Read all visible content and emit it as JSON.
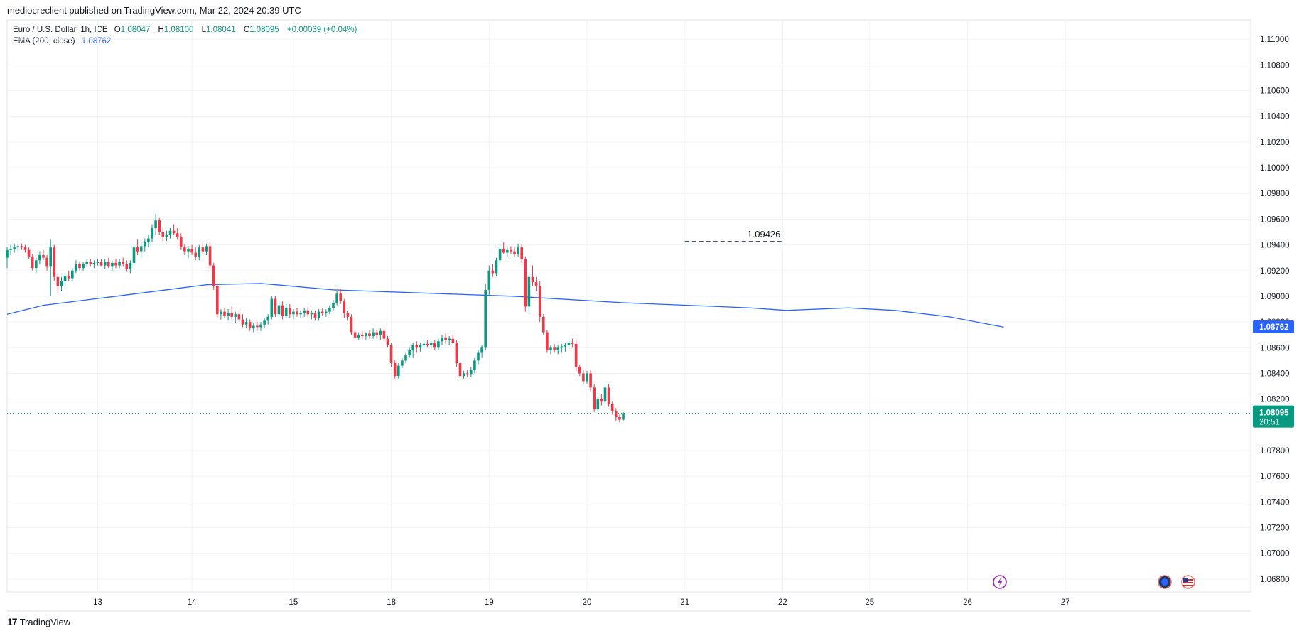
{
  "caption": "mediocreclient published on TradingView.com, Mar 22, 2024 20:39 UTC",
  "legend": {
    "symbol": "Euro / U.S. Dollar, 1h, ICE",
    "o_label": "O",
    "o_value": "1.08047",
    "h_label": "H",
    "h_value": "1.08100",
    "l_label": "L",
    "l_value": "1.08041",
    "c_label": "C",
    "c_value": "1.08095",
    "change": "+0.00039 (+0.04%)",
    "ema_label": "EMA (200, close)",
    "ema_value": "1.08762"
  },
  "branding": {
    "logo_text": "TradingView",
    "logo_icon": "tradingview-logo-icon"
  },
  "colors": {
    "up": "#089981",
    "down": "#f23645",
    "ema": "#2962ff",
    "price_badge": "#089981",
    "ema_badge": "#2962ff",
    "grid": "#f0f3fa",
    "text": "#131722"
  },
  "icons": [
    "lightning-event-icon",
    "globe-event-icon",
    "us-flag-event-icon"
  ],
  "chart_data": {
    "type": "candlestick",
    "interval": "1h",
    "y_range": [
      1.067,
      1.1115
    ],
    "y_ticks": [
      "1.11000",
      "1.10800",
      "1.10600",
      "1.10400",
      "1.10200",
      "1.10000",
      "1.09800",
      "1.09600",
      "1.09400",
      "1.09200",
      "1.09000",
      "1.08800",
      "1.08600",
      "1.08400",
      "1.08200",
      "1.07800",
      "1.07600",
      "1.07400",
      "1.07200",
      "1.07000",
      "1.06800"
    ],
    "x_ticks": [
      "13",
      "14",
      "15",
      "18",
      "19",
      "20",
      "21",
      "22",
      "25",
      "26",
      "27"
    ],
    "last_price": {
      "value": "1.08095",
      "countdown": "20:51"
    },
    "ema_last": "1.08762",
    "annotation": {
      "label": "1.09426",
      "value": 1.09426,
      "from_session": "21",
      "to_session": "22"
    },
    "ema_series": [
      [
        0,
        1.0886
      ],
      [
        10,
        1.0893
      ],
      [
        30,
        1.09
      ],
      [
        55,
        1.0909
      ],
      [
        70,
        1.091
      ],
      [
        90,
        1.0905
      ],
      [
        140,
        1.09
      ],
      [
        170,
        1.0895
      ],
      [
        205,
        1.0891
      ],
      [
        215,
        1.0889
      ],
      [
        232,
        1.0891
      ],
      [
        245,
        1.0889
      ],
      [
        260,
        1.0884
      ],
      [
        275,
        1.0876
      ]
    ],
    "candles": [
      [
        1.093,
        1.0938,
        1.0922,
        1.0936
      ],
      [
        1.0936,
        1.094,
        1.0932,
        1.0937
      ],
      [
        1.0937,
        1.0941,
        1.0934,
        1.0938
      ],
      [
        1.0938,
        1.094,
        1.0935,
        1.0939
      ],
      [
        1.0939,
        1.0941,
        1.0936,
        1.0938
      ],
      [
        1.0938,
        1.094,
        1.0934,
        1.0936
      ],
      [
        1.0936,
        1.0938,
        1.0929,
        1.0931
      ],
      [
        1.0931,
        1.0933,
        1.092,
        1.0922
      ],
      [
        1.0922,
        1.093,
        1.0918,
        1.0928
      ],
      [
        1.0928,
        1.0935,
        1.0925,
        1.0932
      ],
      [
        1.0932,
        1.0936,
        1.0928,
        1.093
      ],
      [
        1.093,
        1.0932,
        1.092,
        1.0923
      ],
      [
        1.0923,
        1.0944,
        1.09,
        1.0938
      ],
      [
        1.0938,
        1.094,
        1.0912,
        1.0915
      ],
      [
        1.0915,
        1.0918,
        1.0902,
        1.0908
      ],
      [
        1.0908,
        1.0915,
        1.0904,
        1.0912
      ],
      [
        1.0912,
        1.0918,
        1.0908,
        1.0916
      ],
      [
        1.0916,
        1.092,
        1.0912,
        1.0914
      ],
      [
        1.0914,
        1.0922,
        1.0912,
        1.092
      ],
      [
        1.092,
        1.0928,
        1.0918,
        1.0925
      ],
      [
        1.0925,
        1.0927,
        1.092,
        1.0922
      ],
      [
        1.0922,
        1.0927,
        1.092,
        1.0925
      ],
      [
        1.0925,
        1.0929,
        1.0923,
        1.0927
      ],
      [
        1.0927,
        1.0929,
        1.0923,
        1.0925
      ],
      [
        1.0925,
        1.0928,
        1.0922,
        1.0926
      ],
      [
        1.0926,
        1.0929,
        1.0924,
        1.0927
      ],
      [
        1.0927,
        1.0929,
        1.0923,
        1.0924
      ],
      [
        1.0924,
        1.0929,
        1.0921,
        1.0927
      ],
      [
        1.0927,
        1.093,
        1.0922,
        1.0923
      ],
      [
        1.0923,
        1.0928,
        1.092,
        1.0926
      ],
      [
        1.0926,
        1.0929,
        1.0922,
        1.0924
      ],
      [
        1.0924,
        1.0929,
        1.0922,
        1.0927
      ],
      [
        1.0927,
        1.093,
        1.0923,
        1.0925
      ],
      [
        1.0925,
        1.0928,
        1.0919,
        1.0921
      ],
      [
        1.0921,
        1.0928,
        1.0918,
        1.0926
      ],
      [
        1.0926,
        1.094,
        1.0924,
        1.0938
      ],
      [
        1.0938,
        1.0944,
        1.0932,
        1.0935
      ],
      [
        1.0935,
        1.0942,
        1.093,
        1.0939
      ],
      [
        1.0939,
        1.0945,
        1.0935,
        1.0942
      ],
      [
        1.0942,
        1.0948,
        1.0938,
        1.0945
      ],
      [
        1.0945,
        1.0956,
        1.0942,
        1.0953
      ],
      [
        1.0953,
        1.0964,
        1.0948,
        1.0959
      ],
      [
        1.0959,
        1.0961,
        1.0948,
        1.095
      ],
      [
        1.095,
        1.0953,
        1.0943,
        1.0946
      ],
      [
        1.0946,
        1.0951,
        1.0943,
        1.0948
      ],
      [
        1.0948,
        1.0953,
        1.0945,
        1.0951
      ],
      [
        1.0951,
        1.0956,
        1.0948,
        1.0949
      ],
      [
        1.0949,
        1.0953,
        1.0944,
        1.0946
      ],
      [
        1.0946,
        1.0949,
        1.0936,
        1.0938
      ],
      [
        1.0938,
        1.0941,
        1.0932,
        1.0935
      ],
      [
        1.0935,
        1.0939,
        1.093,
        1.0937
      ],
      [
        1.0937,
        1.094,
        1.0932,
        1.0934
      ],
      [
        1.0934,
        1.0938,
        1.0928,
        1.0931
      ],
      [
        1.0931,
        1.094,
        1.0928,
        1.0938
      ],
      [
        1.0938,
        1.0942,
        1.0933,
        1.0935
      ],
      [
        1.0935,
        1.0941,
        1.0932,
        1.0939
      ],
      [
        1.0939,
        1.0942,
        1.092,
        1.0924
      ],
      [
        1.0924,
        1.0926,
        1.0905,
        1.0908
      ],
      [
        1.0908,
        1.091,
        1.0883,
        1.0886
      ],
      [
        1.0886,
        1.089,
        1.0882,
        1.0888
      ],
      [
        1.0888,
        1.0891,
        1.0883,
        1.0885
      ],
      [
        1.0885,
        1.089,
        1.0881,
        1.0887
      ],
      [
        1.0887,
        1.0892,
        1.0882,
        1.0884
      ],
      [
        1.0884,
        1.0888,
        1.0879,
        1.0886
      ],
      [
        1.0886,
        1.0889,
        1.088,
        1.0882
      ],
      [
        1.0882,
        1.0886,
        1.0876,
        1.0878
      ],
      [
        1.0878,
        1.0883,
        1.0875,
        1.088
      ],
      [
        1.088,
        1.0882,
        1.0873,
        1.0875
      ],
      [
        1.0875,
        1.0879,
        1.0872,
        1.0877
      ],
      [
        1.0877,
        1.088,
        1.0873,
        1.0876
      ],
      [
        1.0876,
        1.088,
        1.0873,
        1.0878
      ],
      [
        1.0878,
        1.0883,
        1.0875,
        1.0881
      ],
      [
        1.0881,
        1.0886,
        1.0878,
        1.0884
      ],
      [
        1.0884,
        1.09,
        1.0882,
        1.0898
      ],
      [
        1.0898,
        1.09,
        1.0884,
        1.0886
      ],
      [
        1.0886,
        1.0896,
        1.0883,
        1.0893
      ],
      [
        1.0893,
        1.0896,
        1.0882,
        1.0885
      ],
      [
        1.0885,
        1.0894,
        1.0883,
        1.0891
      ],
      [
        1.0891,
        1.0894,
        1.0883,
        1.0886
      ],
      [
        1.0886,
        1.089,
        1.0882,
        1.0888
      ],
      [
        1.0888,
        1.0891,
        1.0884,
        1.0886
      ],
      [
        1.0886,
        1.0889,
        1.0883,
        1.0887
      ],
      [
        1.0887,
        1.0891,
        1.0884,
        1.0889
      ],
      [
        1.0889,
        1.0892,
        1.0884,
        1.0886
      ],
      [
        1.0886,
        1.0889,
        1.0882,
        1.0887
      ],
      [
        1.0887,
        1.0889,
        1.0881,
        1.0883
      ],
      [
        1.0883,
        1.089,
        1.0881,
        1.0888
      ],
      [
        1.0888,
        1.0891,
        1.0885,
        1.0887
      ],
      [
        1.0887,
        1.089,
        1.0884,
        1.0888
      ],
      [
        1.0888,
        1.0893,
        1.0886,
        1.0891
      ],
      [
        1.0891,
        1.0897,
        1.0889,
        1.0895
      ],
      [
        1.0895,
        1.0904,
        1.0893,
        1.0902
      ],
      [
        1.0902,
        1.0906,
        1.0894,
        1.0896
      ],
      [
        1.0896,
        1.0898,
        1.0883,
        1.0887
      ],
      [
        1.0887,
        1.0889,
        1.0881,
        1.0884
      ],
      [
        1.0884,
        1.0886,
        1.087,
        1.0872
      ],
      [
        1.0872,
        1.0874,
        1.0866,
        1.0868
      ],
      [
        1.0868,
        1.0872,
        1.0866,
        1.087
      ],
      [
        1.087,
        1.0873,
        1.0867,
        1.0869
      ],
      [
        1.0869,
        1.0872,
        1.0866,
        1.0871
      ],
      [
        1.0871,
        1.0874,
        1.0867,
        1.0869
      ],
      [
        1.0869,
        1.0875,
        1.0867,
        1.0872
      ],
      [
        1.0872,
        1.0874,
        1.0867,
        1.087
      ],
      [
        1.087,
        1.0875,
        1.0866,
        1.0873
      ],
      [
        1.0873,
        1.0876,
        1.0865,
        1.0867
      ],
      [
        1.0867,
        1.0869,
        1.086,
        1.0862
      ],
      [
        1.0862,
        1.0864,
        1.0845,
        1.0848
      ],
      [
        1.0848,
        1.085,
        1.0836,
        1.0838
      ],
      [
        1.0838,
        1.0848,
        1.0836,
        1.0846
      ],
      [
        1.0846,
        1.0852,
        1.0844,
        1.085
      ],
      [
        1.085,
        1.0856,
        1.0848,
        1.0854
      ],
      [
        1.0854,
        1.086,
        1.0852,
        1.0858
      ],
      [
        1.0858,
        1.0864,
        1.0852,
        1.0862
      ],
      [
        1.0862,
        1.0865,
        1.0856,
        1.086
      ],
      [
        1.086,
        1.0864,
        1.0857,
        1.0862
      ],
      [
        1.0862,
        1.0866,
        1.0859,
        1.0863
      ],
      [
        1.0863,
        1.0866,
        1.086,
        1.0862
      ],
      [
        1.0862,
        1.0865,
        1.0859,
        1.0864
      ],
      [
        1.0864,
        1.0866,
        1.0858,
        1.086
      ],
      [
        1.086,
        1.0867,
        1.0858,
        1.0865
      ],
      [
        1.0865,
        1.087,
        1.0862,
        1.0868
      ],
      [
        1.0868,
        1.0871,
        1.0863,
        1.0866
      ],
      [
        1.0866,
        1.0869,
        1.0862,
        1.0867
      ],
      [
        1.0867,
        1.087,
        1.0863,
        1.0864
      ],
      [
        1.0864,
        1.0866,
        1.0845,
        1.0848
      ],
      [
        1.0848,
        1.085,
        1.0836,
        1.0838
      ],
      [
        1.0838,
        1.0842,
        1.0836,
        1.084
      ],
      [
        1.084,
        1.0843,
        1.0837,
        1.0839
      ],
      [
        1.0839,
        1.0845,
        1.0837,
        1.0843
      ],
      [
        1.0843,
        1.0852,
        1.084,
        1.085
      ],
      [
        1.085,
        1.0858,
        1.0847,
        1.0856
      ],
      [
        1.0856,
        1.0862,
        1.0852,
        1.086
      ],
      [
        1.086,
        1.091,
        1.0858,
        1.0905
      ],
      [
        1.0905,
        1.0924,
        1.09,
        1.092
      ],
      [
        1.092,
        1.0925,
        1.0915,
        1.0918
      ],
      [
        1.0918,
        1.093,
        1.0916,
        1.0928
      ],
      [
        1.0928,
        1.094,
        1.0926,
        1.0937
      ],
      [
        1.0937,
        1.0942,
        1.0933,
        1.0934
      ],
      [
        1.0934,
        1.0938,
        1.0931,
        1.0936
      ],
      [
        1.0936,
        1.0939,
        1.0933,
        1.0935
      ],
      [
        1.0935,
        1.0938,
        1.0931,
        1.0933
      ],
      [
        1.0933,
        1.0941,
        1.0931,
        1.0938
      ],
      [
        1.0938,
        1.0941,
        1.0926,
        1.0929
      ],
      [
        1.0929,
        1.0931,
        1.0888,
        1.0892
      ],
      [
        1.0892,
        1.0918,
        1.0886,
        1.0915
      ],
      [
        1.0915,
        1.0924,
        1.0908,
        1.0911
      ],
      [
        1.0911,
        1.0915,
        1.0904,
        1.0908
      ],
      [
        1.0908,
        1.0912,
        1.088,
        1.0884
      ],
      [
        1.0884,
        1.0886,
        1.087,
        1.0872
      ],
      [
        1.0872,
        1.0874,
        1.0856,
        1.0858
      ],
      [
        1.0858,
        1.0862,
        1.0855,
        1.086
      ],
      [
        1.086,
        1.0863,
        1.0856,
        1.0858
      ],
      [
        1.0858,
        1.0862,
        1.0855,
        1.086
      ],
      [
        1.086,
        1.0863,
        1.0856,
        1.0861
      ],
      [
        1.0861,
        1.0864,
        1.0857,
        1.0862
      ],
      [
        1.0862,
        1.0866,
        1.0859,
        1.0864
      ],
      [
        1.0864,
        1.0867,
        1.086,
        1.0863
      ],
      [
        1.0863,
        1.0866,
        1.0842,
        1.0845
      ],
      [
        1.0845,
        1.0847,
        1.0838,
        1.084
      ],
      [
        1.084,
        1.0843,
        1.0832,
        1.0834
      ],
      [
        1.0834,
        1.0842,
        1.0832,
        1.084
      ],
      [
        1.084,
        1.0843,
        1.0826,
        1.0829
      ],
      [
        1.0829,
        1.0832,
        1.081,
        1.0812
      ],
      [
        1.0812,
        1.0822,
        1.081,
        1.082
      ],
      [
        1.082,
        1.0824,
        1.0815,
        1.0818
      ],
      [
        1.0818,
        1.0831,
        1.0816,
        1.0829
      ],
      [
        1.0829,
        1.0832,
        1.0814,
        1.0816
      ],
      [
        1.0816,
        1.0818,
        1.0808,
        1.0811
      ],
      [
        1.0811,
        1.0813,
        1.0803,
        1.0806
      ],
      [
        1.0806,
        1.0808,
        1.0802,
        1.0804
      ],
      [
        1.0804,
        1.081,
        1.0803,
        1.0809
      ]
    ]
  }
}
